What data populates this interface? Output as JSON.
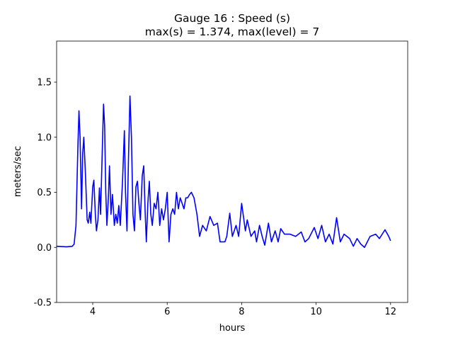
{
  "chart_data": {
    "type": "line",
    "title": [
      "Gauge 16 : Speed (s)",
      "max(s) =   1.374,    max(level) = 7"
    ],
    "xlabel": "hours",
    "ylabel": "meters/sec",
    "color": "#0000ff",
    "xlim": [
      3.03,
      12.46
    ],
    "ylim": [
      -0.5,
      1.873
    ],
    "xticks": [
      4,
      6,
      8,
      10,
      12
    ],
    "yticks": [
      -0.5,
      {
        "value": 0,
        "label": "0.0"
      },
      0.5,
      {
        "value": 1,
        "label": "1.0"
      },
      1.5
    ],
    "x": [
      3.03,
      3.3,
      3.45,
      3.5,
      3.55,
      3.6,
      3.63,
      3.66,
      3.7,
      3.73,
      3.76,
      3.8,
      3.85,
      3.88,
      3.92,
      3.95,
      4.0,
      4.03,
      4.07,
      4.1,
      4.14,
      4.18,
      4.21,
      4.25,
      4.29,
      4.32,
      4.35,
      4.38,
      4.42,
      4.45,
      4.49,
      4.53,
      4.58,
      4.62,
      4.66,
      4.7,
      4.74,
      4.8,
      4.85,
      4.88,
      4.92,
      4.96,
      5.0,
      5.04,
      5.08,
      5.12,
      5.16,
      5.2,
      5.24,
      5.28,
      5.33,
      5.37,
      5.41,
      5.44,
      5.48,
      5.52,
      5.56,
      5.6,
      5.65,
      5.7,
      5.75,
      5.8,
      5.85,
      5.9,
      5.95,
      6.0,
      6.05,
      6.1,
      6.15,
      6.2,
      6.25,
      6.3,
      6.35,
      6.4,
      6.45,
      6.5,
      6.55,
      6.6,
      6.65,
      6.72,
      6.8,
      6.87,
      6.95,
      7.05,
      7.15,
      7.25,
      7.35,
      7.42,
      7.55,
      7.6,
      7.68,
      7.75,
      7.85,
      7.92,
      8.0,
      8.1,
      8.15,
      8.25,
      8.35,
      8.4,
      8.48,
      8.55,
      8.62,
      8.72,
      8.8,
      8.9,
      8.98,
      9.05,
      9.15,
      9.3,
      9.45,
      9.6,
      9.7,
      9.8,
      9.95,
      10.05,
      10.15,
      10.25,
      10.35,
      10.45,
      10.55,
      10.65,
      10.75,
      10.9,
      11.0,
      11.1,
      11.2,
      11.3,
      11.45,
      11.6,
      11.7,
      11.85,
      11.95,
      12.0
    ],
    "values": [
      0.01,
      0.005,
      0.01,
      0.03,
      0.2,
      0.9,
      1.24,
      1.0,
      0.35,
      0.85,
      1.0,
      0.7,
      0.25,
      0.22,
      0.32,
      0.22,
      0.55,
      0.61,
      0.3,
      0.15,
      0.25,
      0.54,
      0.3,
      0.8,
      1.3,
      1.1,
      0.5,
      0.2,
      0.45,
      0.74,
      0.3,
      0.48,
      0.2,
      0.3,
      0.22,
      0.38,
      0.2,
      0.6,
      1.06,
      0.5,
      0.15,
      0.8,
      1.374,
      1.0,
      0.3,
      0.15,
      0.55,
      0.6,
      0.4,
      0.25,
      0.65,
      0.74,
      0.3,
      0.05,
      0.4,
      0.6,
      0.3,
      0.2,
      0.4,
      0.35,
      0.5,
      0.2,
      0.35,
      0.25,
      0.35,
      0.5,
      0.05,
      0.3,
      0.35,
      0.3,
      0.5,
      0.35,
      0.45,
      0.4,
      0.35,
      0.45,
      0.45,
      0.48,
      0.5,
      0.45,
      0.3,
      0.1,
      0.2,
      0.15,
      0.28,
      0.2,
      0.22,
      0.05,
      0.05,
      0.1,
      0.31,
      0.1,
      0.2,
      0.1,
      0.4,
      0.15,
      0.25,
      0.1,
      0.15,
      0.05,
      0.2,
      0.1,
      0.02,
      0.22,
      0.05,
      0.15,
      0.05,
      0.17,
      0.12,
      0.12,
      0.1,
      0.14,
      0.05,
      0.08,
      0.18,
      0.08,
      0.2,
      0.05,
      0.12,
      0.03,
      0.27,
      0.05,
      0.12,
      0.08,
      0.01,
      0.08,
      0.03,
      0.0,
      0.1,
      0.12,
      0.08,
      0.16,
      0.1,
      0.06
    ]
  }
}
